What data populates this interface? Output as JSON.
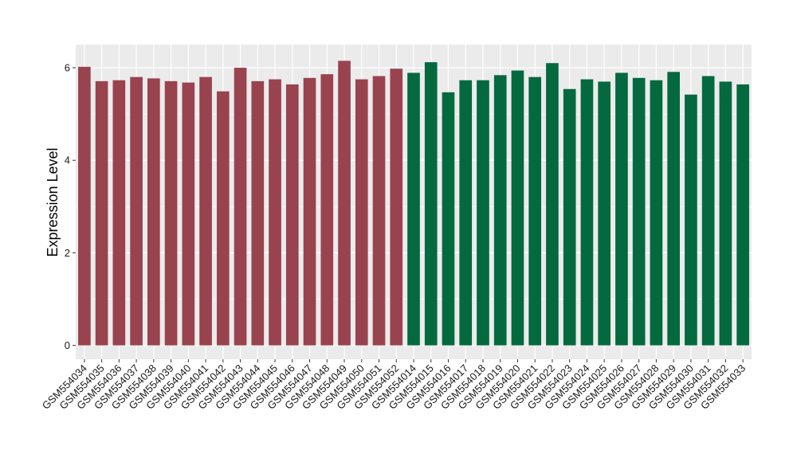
{
  "chart_data": {
    "type": "bar",
    "ylabel": "Expression Level",
    "xlabel": "",
    "ylim": [
      -0.3,
      6.5
    ],
    "y_ticks": [
      0,
      2,
      4,
      6
    ],
    "grid": true,
    "panel_background": "#ebebeb",
    "grid_color": "#ffffff",
    "categories": [
      "GSM554034",
      "GSM554035",
      "GSM554036",
      "GSM554037",
      "GSM554038",
      "GSM554039",
      "GSM554040",
      "GSM554041",
      "GSM554042",
      "GSM554043",
      "GSM554044",
      "GSM554045",
      "GSM554046",
      "GSM554047",
      "GSM554048",
      "GSM554049",
      "GSM554050",
      "GSM554051",
      "GSM554052",
      "GSM554014",
      "GSM554015",
      "GSM554016",
      "GSM554017",
      "GSM554018",
      "GSM554019",
      "GSM554020",
      "GSM554021",
      "GSM554022",
      "GSM554023",
      "GSM554024",
      "GSM554025",
      "GSM554026",
      "GSM554027",
      "GSM554028",
      "GSM554029",
      "GSM554030",
      "GSM554031",
      "GSM554032",
      "GSM554033"
    ],
    "values": [
      6.02,
      5.71,
      5.73,
      5.8,
      5.77,
      5.71,
      5.68,
      5.8,
      5.49,
      6.0,
      5.71,
      5.75,
      5.64,
      5.78,
      5.86,
      6.15,
      5.75,
      5.82,
      5.98,
      5.89,
      6.12,
      5.47,
      5.73,
      5.73,
      5.84,
      5.94,
      5.8,
      6.1,
      5.54,
      5.75,
      5.7,
      5.89,
      5.78,
      5.73,
      5.91,
      5.42,
      5.82,
      5.7,
      5.64
    ],
    "group_colors": [
      "#99434f",
      "#04693f"
    ],
    "groups": [
      0,
      0,
      0,
      0,
      0,
      0,
      0,
      0,
      0,
      0,
      0,
      0,
      0,
      0,
      0,
      0,
      0,
      0,
      0,
      1,
      1,
      1,
      1,
      1,
      1,
      1,
      1,
      1,
      1,
      1,
      1,
      1,
      1,
      1,
      1,
      1,
      1,
      1,
      1
    ]
  }
}
